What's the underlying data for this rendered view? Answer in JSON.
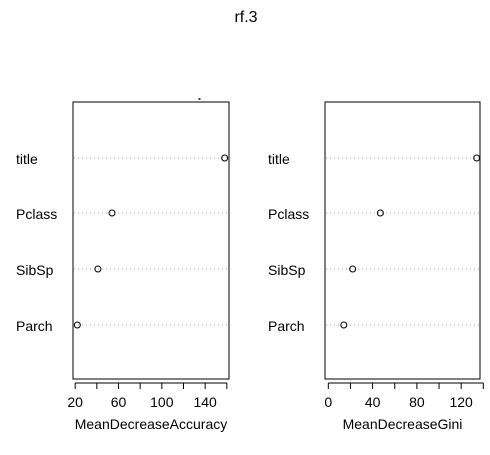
{
  "title": "rf.3",
  "chart_data": [
    {
      "type": "scatter",
      "subtype": "dotchart",
      "categories": [
        "title",
        "Pclass",
        "SibSp",
        "Parch"
      ],
      "values": [
        158,
        54,
        41,
        22
      ],
      "xlabel": "MeanDecreaseAccuracy",
      "ylabel": "",
      "xlim": [
        18,
        162
      ],
      "xticks": [
        20,
        60,
        100,
        140
      ],
      "tick_labels": [
        "20",
        "60",
        "100",
        "140"
      ],
      "grid": "dotted-rows"
    },
    {
      "type": "scatter",
      "subtype": "dotchart",
      "categories": [
        "title",
        "Pclass",
        "SibSp",
        "Parch"
      ],
      "values": [
        134,
        47,
        22,
        14
      ],
      "xlabel": "MeanDecreaseGini",
      "ylabel": "",
      "xlim": [
        -3,
        137
      ],
      "xticks": [
        0,
        40,
        80,
        120
      ],
      "tick_labels": [
        "0",
        "40",
        "80",
        "120"
      ],
      "grid": "dotted-rows"
    }
  ],
  "colors": {
    "background": "#ffffff",
    "ink": "#000000",
    "grid": "#a0a0a0",
    "stray_mark": "#3030a0"
  }
}
